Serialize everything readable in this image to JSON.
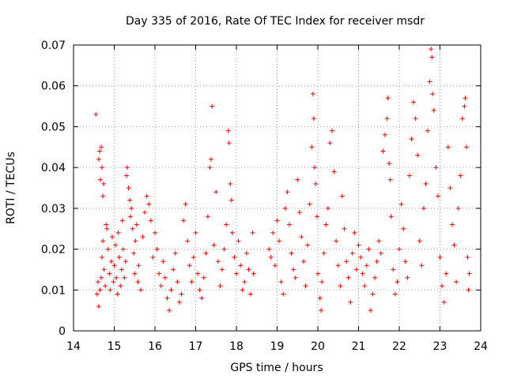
{
  "chart_data": {
    "type": "scatter",
    "title": "Day 335 of 2016, Rate Of TEC Index for receiver msdr",
    "xlabel": "GPS time / hours",
    "ylabel": "ROTI / TECUs",
    "xlim": [
      14,
      24
    ],
    "ylim": [
      0,
      0.07
    ],
    "xticks": [
      14,
      15,
      16,
      17,
      18,
      19,
      20,
      21,
      22,
      23,
      24
    ],
    "yticks": [
      0,
      0.01,
      0.02,
      0.03,
      0.04,
      0.05,
      0.06,
      0.07
    ],
    "xtick_labels": [
      "14",
      "15",
      "16",
      "17",
      "18",
      "19",
      "20",
      "21",
      "22",
      "23",
      "24"
    ],
    "ytick_labels": [
      "0",
      "0.01",
      "0.02",
      "0.03",
      "0.04",
      "0.05",
      "0.06",
      "0.07"
    ],
    "grid": true,
    "marker": "+",
    "color": "#ff0000",
    "series": [
      {
        "name": "ROTI",
        "points": [
          [
            14.55,
            0.053
          ],
          [
            14.58,
            0.009
          ],
          [
            14.6,
            0.012
          ],
          [
            14.62,
            0.042
          ],
          [
            14.64,
            0.044
          ],
          [
            14.66,
            0.037
          ],
          [
            14.68,
            0.045
          ],
          [
            14.7,
            0.04
          ],
          [
            14.72,
            0.033
          ],
          [
            14.74,
            0.036
          ],
          [
            14.62,
            0.006
          ],
          [
            14.65,
            0.01
          ],
          [
            14.68,
            0.013
          ],
          [
            14.7,
            0.018
          ],
          [
            14.72,
            0.022
          ],
          [
            14.75,
            0.015
          ],
          [
            14.78,
            0.011
          ],
          [
            14.8,
            0.026
          ],
          [
            14.82,
            0.025
          ],
          [
            14.85,
            0.02
          ],
          [
            14.88,
            0.014
          ],
          [
            14.9,
            0.01
          ],
          [
            14.93,
            0.017
          ],
          [
            14.95,
            0.023
          ],
          [
            14.98,
            0.012
          ],
          [
            15.0,
            0.016
          ],
          [
            15.03,
            0.021
          ],
          [
            15.05,
            0.013
          ],
          [
            15.08,
            0.009
          ],
          [
            15.1,
            0.024
          ],
          [
            15.12,
            0.018
          ],
          [
            15.15,
            0.011
          ],
          [
            15.18,
            0.015
          ],
          [
            15.2,
            0.027
          ],
          [
            15.22,
            0.02
          ],
          [
            15.25,
            0.013
          ],
          [
            15.28,
            0.017
          ],
          [
            15.3,
            0.038
          ],
          [
            15.32,
            0.04
          ],
          [
            15.35,
            0.035
          ],
          [
            15.38,
            0.032
          ],
          [
            15.4,
            0.028
          ],
          [
            15.42,
            0.03
          ],
          [
            15.45,
            0.025
          ],
          [
            15.48,
            0.019
          ],
          [
            15.5,
            0.014
          ],
          [
            15.52,
            0.022
          ],
          [
            15.55,
            0.026
          ],
          [
            15.58,
            0.012
          ],
          [
            15.6,
            0.016
          ],
          [
            15.65,
            0.01
          ],
          [
            15.7,
            0.023
          ],
          [
            15.75,
            0.029
          ],
          [
            15.8,
            0.033
          ],
          [
            15.85,
            0.031
          ],
          [
            15.9,
            0.027
          ],
          [
            15.95,
            0.018
          ],
          [
            16.0,
            0.024
          ],
          [
            16.05,
            0.02
          ],
          [
            16.1,
            0.014
          ],
          [
            16.15,
            0.011
          ],
          [
            16.2,
            0.017
          ],
          [
            16.25,
            0.013
          ],
          [
            16.3,
            0.008
          ],
          [
            16.35,
            0.005
          ],
          [
            16.4,
            0.01
          ],
          [
            16.45,
            0.015
          ],
          [
            16.5,
            0.019
          ],
          [
            16.55,
            0.012
          ],
          [
            16.6,
            0.007
          ],
          [
            16.65,
            0.009
          ],
          [
            16.7,
            0.027
          ],
          [
            16.75,
            0.031
          ],
          [
            16.8,
            0.022
          ],
          [
            16.85,
            0.016
          ],
          [
            16.9,
            0.012
          ],
          [
            16.95,
            0.018
          ],
          [
            17.0,
            0.024
          ],
          [
            17.05,
            0.014
          ],
          [
            17.1,
            0.01
          ],
          [
            17.15,
            0.008
          ],
          [
            17.2,
            0.013
          ],
          [
            17.25,
            0.019
          ],
          [
            17.3,
            0.028
          ],
          [
            17.35,
            0.04
          ],
          [
            17.38,
            0.042
          ],
          [
            17.4,
            0.055
          ],
          [
            17.45,
            0.021
          ],
          [
            17.5,
            0.034
          ],
          [
            17.55,
            0.017
          ],
          [
            17.6,
            0.011
          ],
          [
            17.65,
            0.015
          ],
          [
            17.7,
            0.02
          ],
          [
            17.75,
            0.026
          ],
          [
            17.8,
            0.049
          ],
          [
            17.82,
            0.046
          ],
          [
            17.85,
            0.036
          ],
          [
            17.88,
            0.032
          ],
          [
            17.9,
            0.024
          ],
          [
            17.95,
            0.018
          ],
          [
            18.0,
            0.014
          ],
          [
            18.05,
            0.022
          ],
          [
            18.1,
            0.016
          ],
          [
            18.15,
            0.01
          ],
          [
            18.2,
            0.012
          ],
          [
            18.25,
            0.019
          ],
          [
            18.3,
            0.015
          ],
          [
            18.35,
            0.009
          ],
          [
            18.4,
            0.024
          ],
          [
            18.42,
            0.014
          ],
          [
            18.8,
            0.02
          ],
          [
            18.85,
            0.018
          ],
          [
            18.9,
            0.024
          ],
          [
            18.95,
            0.016
          ],
          [
            19.0,
            0.027
          ],
          [
            19.05,
            0.022
          ],
          [
            19.1,
            0.012
          ],
          [
            19.15,
            0.009
          ],
          [
            19.2,
            0.03
          ],
          [
            19.25,
            0.034
          ],
          [
            19.3,
            0.026
          ],
          [
            19.35,
            0.019
          ],
          [
            19.4,
            0.015
          ],
          [
            19.45,
            0.013
          ],
          [
            19.5,
            0.037
          ],
          [
            19.55,
            0.029
          ],
          [
            19.6,
            0.023
          ],
          [
            19.65,
            0.017
          ],
          [
            19.7,
            0.011
          ],
          [
            19.75,
            0.021
          ],
          [
            19.8,
            0.031
          ],
          [
            19.85,
            0.045
          ],
          [
            19.88,
            0.058
          ],
          [
            19.9,
            0.052
          ],
          [
            19.92,
            0.04
          ],
          [
            19.95,
            0.036
          ],
          [
            19.98,
            0.028
          ],
          [
            20.0,
            0.014
          ],
          [
            20.05,
            0.008
          ],
          [
            20.08,
            0.005
          ],
          [
            20.1,
            0.012
          ],
          [
            20.15,
            0.019
          ],
          [
            20.2,
            0.026
          ],
          [
            20.25,
            0.03
          ],
          [
            20.3,
            0.046
          ],
          [
            20.35,
            0.049
          ],
          [
            20.4,
            0.039
          ],
          [
            20.45,
            0.022
          ],
          [
            20.5,
            0.016
          ],
          [
            20.55,
            0.011
          ],
          [
            20.6,
            0.033
          ],
          [
            20.65,
            0.025
          ],
          [
            20.7,
            0.017
          ],
          [
            20.75,
            0.013
          ],
          [
            20.8,
            0.007
          ],
          [
            20.85,
            0.019
          ],
          [
            20.9,
            0.024
          ],
          [
            20.95,
            0.015
          ],
          [
            21.0,
            0.021
          ],
          [
            21.05,
            0.018
          ],
          [
            21.1,
            0.014
          ],
          [
            21.15,
            0.011
          ],
          [
            21.2,
            0.016
          ],
          [
            21.25,
            0.02
          ],
          [
            21.3,
            0.005
          ],
          [
            21.35,
            0.009
          ],
          [
            21.4,
            0.013
          ],
          [
            21.45,
            0.017
          ],
          [
            21.5,
            0.022
          ],
          [
            21.55,
            0.019
          ],
          [
            21.6,
            0.044
          ],
          [
            21.65,
            0.048
          ],
          [
            21.7,
            0.052
          ],
          [
            21.72,
            0.057
          ],
          [
            21.75,
            0.041
          ],
          [
            21.78,
            0.037
          ],
          [
            21.8,
            0.028
          ],
          [
            21.85,
            0.015
          ],
          [
            21.9,
            0.009
          ],
          [
            21.95,
            0.012
          ],
          [
            22.0,
            0.02
          ],
          [
            22.05,
            0.031
          ],
          [
            22.1,
            0.025
          ],
          [
            22.15,
            0.017
          ],
          [
            22.2,
            0.013
          ],
          [
            22.25,
            0.038
          ],
          [
            22.3,
            0.047
          ],
          [
            22.35,
            0.056
          ],
          [
            22.4,
            0.052
          ],
          [
            22.45,
            0.043
          ],
          [
            22.5,
            0.022
          ],
          [
            22.55,
            0.016
          ],
          [
            22.6,
            0.03
          ],
          [
            22.65,
            0.036
          ],
          [
            22.7,
            0.049
          ],
          [
            22.75,
            0.061
          ],
          [
            22.78,
            0.069
          ],
          [
            22.8,
            0.067
          ],
          [
            22.82,
            0.058
          ],
          [
            22.85,
            0.054
          ],
          [
            22.9,
            0.04
          ],
          [
            22.95,
            0.033
          ],
          [
            23.0,
            0.018
          ],
          [
            23.05,
            0.011
          ],
          [
            23.1,
            0.007
          ],
          [
            23.15,
            0.014
          ],
          [
            23.2,
            0.045
          ],
          [
            23.25,
            0.035
          ],
          [
            23.3,
            0.026
          ],
          [
            23.35,
            0.021
          ],
          [
            23.4,
            0.012
          ],
          [
            23.45,
            0.03
          ],
          [
            23.5,
            0.038
          ],
          [
            23.55,
            0.052
          ],
          [
            23.6,
            0.055
          ],
          [
            23.62,
            0.057
          ],
          [
            23.65,
            0.045
          ],
          [
            23.68,
            0.018
          ],
          [
            23.7,
            0.01
          ],
          [
            23.72,
            0.014
          ]
        ]
      }
    ]
  }
}
